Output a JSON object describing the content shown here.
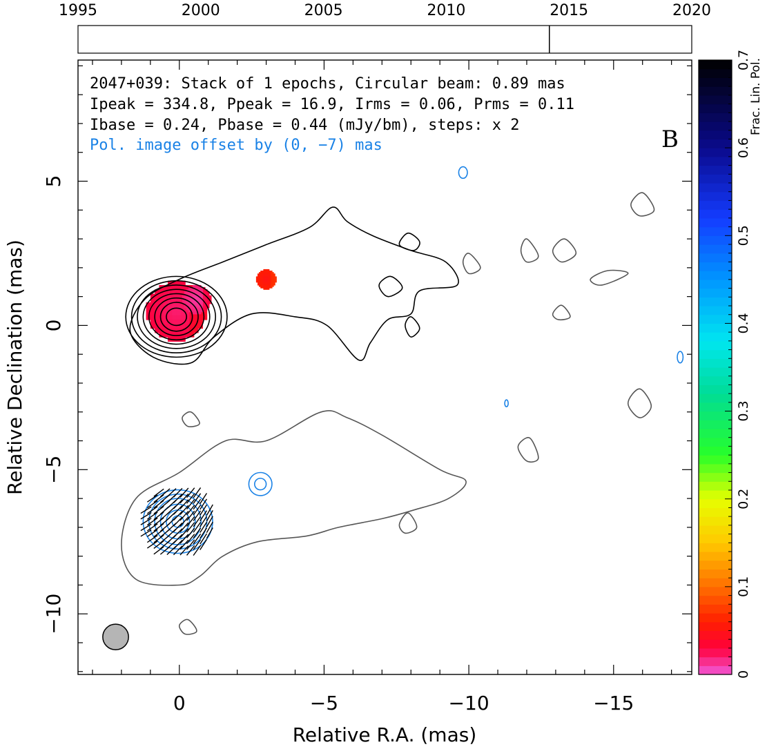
{
  "chart_data": {
    "type": "contour",
    "panel_label": "B",
    "title_lines": [
      "2047+039: Stack of 1 epochs, Circular beam: 0.89 mas",
      "Ipeak = 334.8, Ppeak = 16.9, Irms = 0.06, Prms = 0.11",
      "Ibase = 0.24, Pbase = 0.44 (mJy/bm), steps: x 2"
    ],
    "offset_note": "Pol. image offset by (0, −7) mas",
    "xlabel": "Relative R.A. (mas)",
    "ylabel": "Relative Declination (mas)",
    "xlim": [
      3.5,
      -17.7
    ],
    "ylim": [
      -12.1,
      9.2
    ],
    "xticks": [
      0,
      -5,
      -10,
      -15
    ],
    "xtick_labels": [
      "0",
      "−5",
      "−10",
      "−15"
    ],
    "yticks": [
      -10,
      -5,
      0,
      5
    ],
    "ytick_labels": [
      "−10",
      "−5",
      "0",
      "5"
    ],
    "timeline": {
      "years": [
        1995,
        2000,
        2005,
        2010,
        2015,
        2020
      ],
      "range": [
        1995,
        2020
      ],
      "epochs": [
        2014.2
      ]
    },
    "colorbar": {
      "label": "Frac. Lin. Pol.",
      "range": [
        0,
        0.7
      ],
      "ticks": [
        0,
        0.1,
        0.2,
        0.3,
        0.4,
        0.5,
        0.6,
        0.7
      ],
      "tick_labels": [
        "0",
        "0.1",
        "0.2",
        "0.3",
        "0.4",
        "0.5",
        "0.6",
        "0.7"
      ]
    },
    "beam": {
      "diameter_mas": 0.89,
      "ra": 2.2,
      "dec": -10.8
    },
    "total_intensity_contours": [
      {
        "name": "core",
        "center": [
          0.1,
          0.3
        ],
        "levels": [
          [
            0.35,
            0.3
          ],
          [
            0.55,
            0.5
          ],
          [
            0.75,
            0.65
          ],
          [
            0.95,
            0.8
          ],
          [
            1.15,
            0.95
          ],
          [
            1.35,
            1.1
          ],
          [
            1.55,
            1.25
          ],
          [
            1.75,
            1.4
          ]
        ]
      },
      {
        "name": "jet",
        "points": [
          [
            1.2,
            0.9
          ],
          [
            0,
            1.6
          ],
          [
            -1.5,
            2.2
          ],
          [
            -3,
            2.8
          ],
          [
            -4.5,
            3.4
          ],
          [
            -5.3,
            4.1
          ],
          [
            -5.8,
            3.6
          ],
          [
            -6.7,
            3.1
          ],
          [
            -8,
            2.6
          ],
          [
            -9.2,
            2.2
          ],
          [
            -9.6,
            1.4
          ],
          [
            -8.3,
            1.2
          ],
          [
            -8,
            0.4
          ],
          [
            -7.2,
            0.2
          ],
          [
            -6.6,
            -0.6
          ],
          [
            -6.2,
            -1.2
          ],
          [
            -5.1,
            0
          ],
          [
            -4,
            0.3
          ],
          [
            -2.5,
            0.4
          ],
          [
            -1.2,
            -0.4
          ],
          [
            -0.4,
            -1.3
          ],
          [
            0.9,
            -1.1
          ],
          [
            1.7,
            -0.2
          ]
        ]
      },
      {
        "name": "spot-1",
        "points": [
          [
            -7.9,
            3.2
          ],
          [
            -8.3,
            2.9
          ],
          [
            -8.1,
            2.6
          ],
          [
            -7.6,
            2.8
          ]
        ]
      },
      {
        "name": "spot-2",
        "points": [
          [
            -7.3,
            1.7
          ],
          [
            -7.7,
            1.3
          ],
          [
            -7.2,
            1
          ],
          [
            -6.9,
            1.4
          ]
        ]
      },
      {
        "name": "spot-3",
        "points": [
          [
            -8,
            0.3
          ],
          [
            -8.3,
            -0.1
          ],
          [
            -8,
            -0.4
          ],
          [
            -7.8,
            0
          ]
        ]
      }
    ],
    "faint_contours": [
      {
        "name": "blob-a",
        "points": [
          [
            -10,
            2.5
          ],
          [
            -10.4,
            2
          ],
          [
            -10,
            1.8
          ],
          [
            -9.8,
            2.2
          ]
        ]
      },
      {
        "name": "blob-b",
        "points": [
          [
            -12,
            3
          ],
          [
            -12.4,
            2.4
          ],
          [
            -12,
            2.2
          ],
          [
            -11.8,
            2.6
          ]
        ]
      },
      {
        "name": "blob-c",
        "points": [
          [
            -13.3,
            3.0
          ],
          [
            -13.7,
            2.5
          ],
          [
            -13.2,
            2.2
          ],
          [
            -12.9,
            2.6
          ]
        ]
      },
      {
        "name": "blob-d",
        "points": [
          [
            -16,
            4.6
          ],
          [
            -16.4,
            4.0
          ],
          [
            -15.9,
            3.8
          ],
          [
            -15.6,
            4.2
          ]
        ]
      },
      {
        "name": "blob-e",
        "points": [
          [
            -14.8,
            1.9
          ],
          [
            -15.5,
            1.8
          ],
          [
            -14.6,
            1.4
          ],
          [
            -14.2,
            1.6
          ]
        ]
      },
      {
        "name": "blob-f",
        "points": [
          [
            -13.2,
            0.7
          ],
          [
            -13.5,
            0.3
          ],
          [
            -13.1,
            0.2
          ],
          [
            -12.9,
            0.4
          ]
        ]
      },
      {
        "name": "blob-g",
        "points": [
          [
            -15.9,
            -2.2
          ],
          [
            -16.3,
            -2.8
          ],
          [
            -15.9,
            -3.2
          ],
          [
            -15.5,
            -2.7
          ]
        ]
      },
      {
        "name": "blob-h",
        "points": [
          [
            -12.1,
            -3.9
          ],
          [
            -12.4,
            -4.6
          ],
          [
            -12,
            -4.7
          ],
          [
            -11.7,
            -4.2
          ]
        ]
      },
      {
        "name": "blob-i",
        "points": [
          [
            -0.4,
            -3.0
          ],
          [
            -0.7,
            -3.4
          ],
          [
            -0.3,
            -3.5
          ],
          [
            -0.1,
            -3.2
          ]
        ]
      },
      {
        "name": "blob-j",
        "points": [
          [
            -0.3,
            -10.2
          ],
          [
            -0.6,
            -10.6
          ],
          [
            -0.2,
            -10.7
          ],
          [
            0,
            -10.4
          ]
        ]
      },
      {
        "name": "blob-k",
        "points": [
          [
            -7.9,
            -6.5
          ],
          [
            -8.2,
            -7
          ],
          [
            -7.8,
            -7.2
          ],
          [
            -7.6,
            -6.9
          ]
        ]
      },
      {
        "name": "pol-jet-outline",
        "points": [
          [
            2,
            -7.6
          ],
          [
            1.5,
            -6
          ],
          [
            0,
            -5.1
          ],
          [
            -1.6,
            -4
          ],
          [
            -3,
            -4
          ],
          [
            -4.9,
            -3
          ],
          [
            -5.8,
            -3.2
          ],
          [
            -7,
            -3.8
          ],
          [
            -9,
            -5
          ],
          [
            -9.9,
            -5.4
          ],
          [
            -9.3,
            -6
          ],
          [
            -8.1,
            -6.4
          ],
          [
            -7,
            -6.7
          ],
          [
            -5.5,
            -7
          ],
          [
            -4.4,
            -7.3
          ],
          [
            -2.7,
            -7.5
          ],
          [
            -1.5,
            -8
          ],
          [
            -0.7,
            -8.7
          ],
          [
            0,
            -9
          ],
          [
            1.5,
            -8.8
          ]
        ]
      }
    ],
    "polarization_contours": [
      {
        "name": "pol-core",
        "center": [
          0.05,
          -6.8
        ],
        "levels": [
          [
            0.2,
            0.2
          ],
          [
            0.4,
            0.4
          ],
          [
            0.6,
            0.6
          ],
          [
            0.8,
            0.8
          ],
          [
            1,
            0.95
          ],
          [
            1.2,
            1.1
          ]
        ]
      },
      {
        "name": "pol-knot",
        "center": [
          -2.8,
          -5.5
        ],
        "levels": [
          [
            0.2,
            0.2
          ],
          [
            0.4,
            0.4
          ]
        ]
      },
      {
        "name": "pol-spot-1",
        "center": [
          -9.8,
          5.3
        ],
        "levels": [
          [
            0.15,
            0.2
          ]
        ]
      },
      {
        "name": "pol-spot-2",
        "center": [
          -17.3,
          -1.1
        ],
        "levels": [
          [
            0.1,
            0.2
          ]
        ]
      },
      {
        "name": "pol-spot-3",
        "center": [
          -11.3,
          -2.7
        ],
        "levels": [
          [
            0.06,
            0.12
          ]
        ]
      }
    ],
    "fractional_polarization_regions": [
      {
        "ra": 0.1,
        "dec": 0.5,
        "size": 2.1,
        "frac": 0.03
      },
      {
        "ra": -0.6,
        "dec": 0.9,
        "size": 1.0,
        "frac": 0.02
      },
      {
        "ra": -3,
        "dec": 1.6,
        "size": 0.7,
        "frac": 0.06
      }
    ]
  }
}
